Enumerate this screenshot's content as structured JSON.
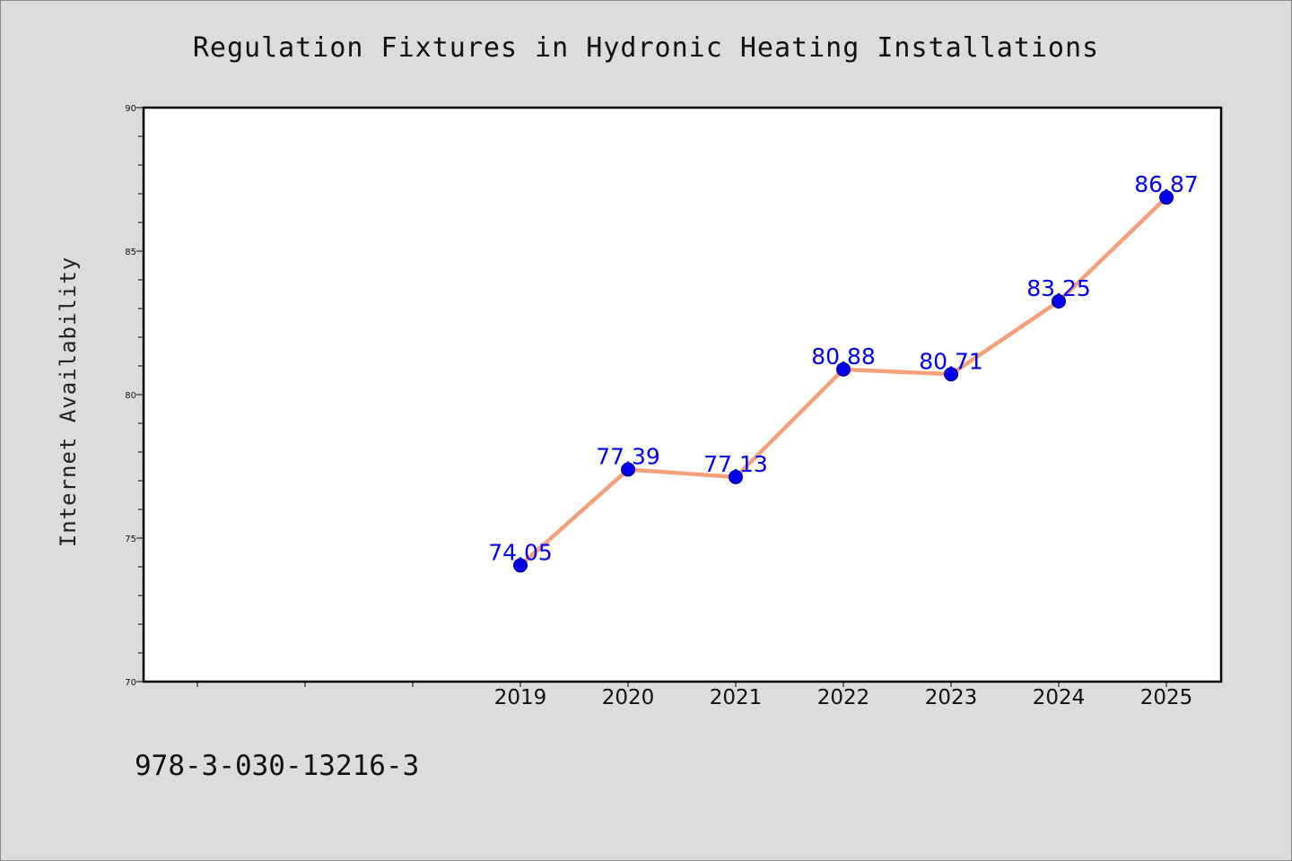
{
  "chart_data": {
    "type": "line",
    "title": "Regulation Fixtures in Hydronic Heating Installations",
    "xlabel": "",
    "ylabel": "Internet Availability",
    "categories": [
      "2019",
      "2020",
      "2021",
      "2022",
      "2023",
      "2024",
      "2025"
    ],
    "values": [
      74.05,
      77.39,
      77.13,
      80.88,
      80.71,
      83.25,
      86.87
    ],
    "data_labels": [
      "74.05",
      "77.39",
      "77.13",
      "80.88",
      "80.71",
      "83.25",
      "86.87"
    ],
    "ylim": [
      70,
      90
    ],
    "yticks": [
      "70",
      "75",
      "80",
      "85",
      "90"
    ],
    "grid": false,
    "legend": "none",
    "line_color": "#f4a07a",
    "marker_color": "#0000ee"
  },
  "footer": {
    "isbn": "978-3-030-13216-3"
  }
}
